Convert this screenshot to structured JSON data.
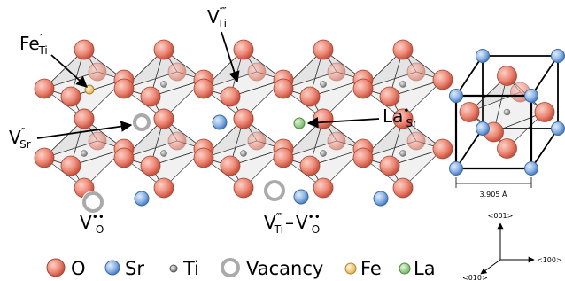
{
  "labels": {
    "fe_ti": {
      "base": "Fe",
      "sup": "′",
      "sub": "Ti"
    },
    "v_ti": {
      "base": "V",
      "sup": "⁗",
      "sub": "Ti"
    },
    "v_sr": {
      "base": "V",
      "sup": "″",
      "sub": "Sr"
    },
    "la_sr": {
      "base": "La",
      "sup": "•",
      "sub": "Sr"
    },
    "v_o": {
      "base": "V",
      "sup": "••",
      "sub": "O"
    },
    "v_ti_v_o": {
      "first": {
        "base": "V",
        "sup": "⁗",
        "sub": "Ti"
      },
      "separator": "–",
      "second": {
        "base": "V",
        "sup": "••",
        "sub": "O"
      }
    }
  },
  "legend": [
    "O",
    "Sr",
    "Ti",
    "Vacancy",
    "Fe",
    "La"
  ],
  "unit_cell": {
    "lattice_parameter": "3.905 Å",
    "axes": [
      "<001>",
      "<100>",
      "<010>"
    ]
  }
}
